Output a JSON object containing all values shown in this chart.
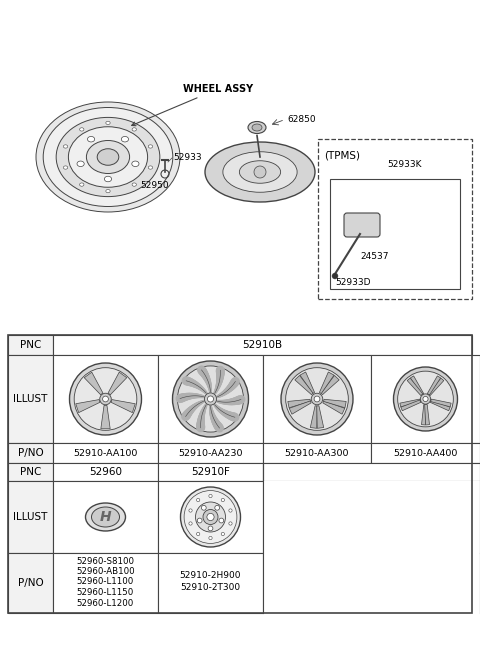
{
  "bg_color": "#ffffff",
  "line_color": "#444444",
  "text_color": "#000000",
  "diagram": {
    "wheel_label": "WHEEL ASSY",
    "parts_labels": [
      "52933",
      "52950",
      "62850"
    ],
    "tpms_label": "(TPMS)",
    "tpms_parts": [
      "52933K",
      "24537",
      "52933D"
    ]
  },
  "table": {
    "pno_row1": [
      "52910-AA100",
      "52910-AA230",
      "52910-AA300",
      "52910-AA400"
    ],
    "pnc_row1": "52910B",
    "pnc_row2_col1": "52960",
    "pnc_row2_col2": "52910F",
    "pno_row2_col1": [
      "52960-S8100",
      "52960-AB100",
      "52960-L1100",
      "52960-L1150",
      "52960-L1200"
    ],
    "pno_row2_col2": [
      "52910-2H900",
      "52910-2T300"
    ]
  }
}
